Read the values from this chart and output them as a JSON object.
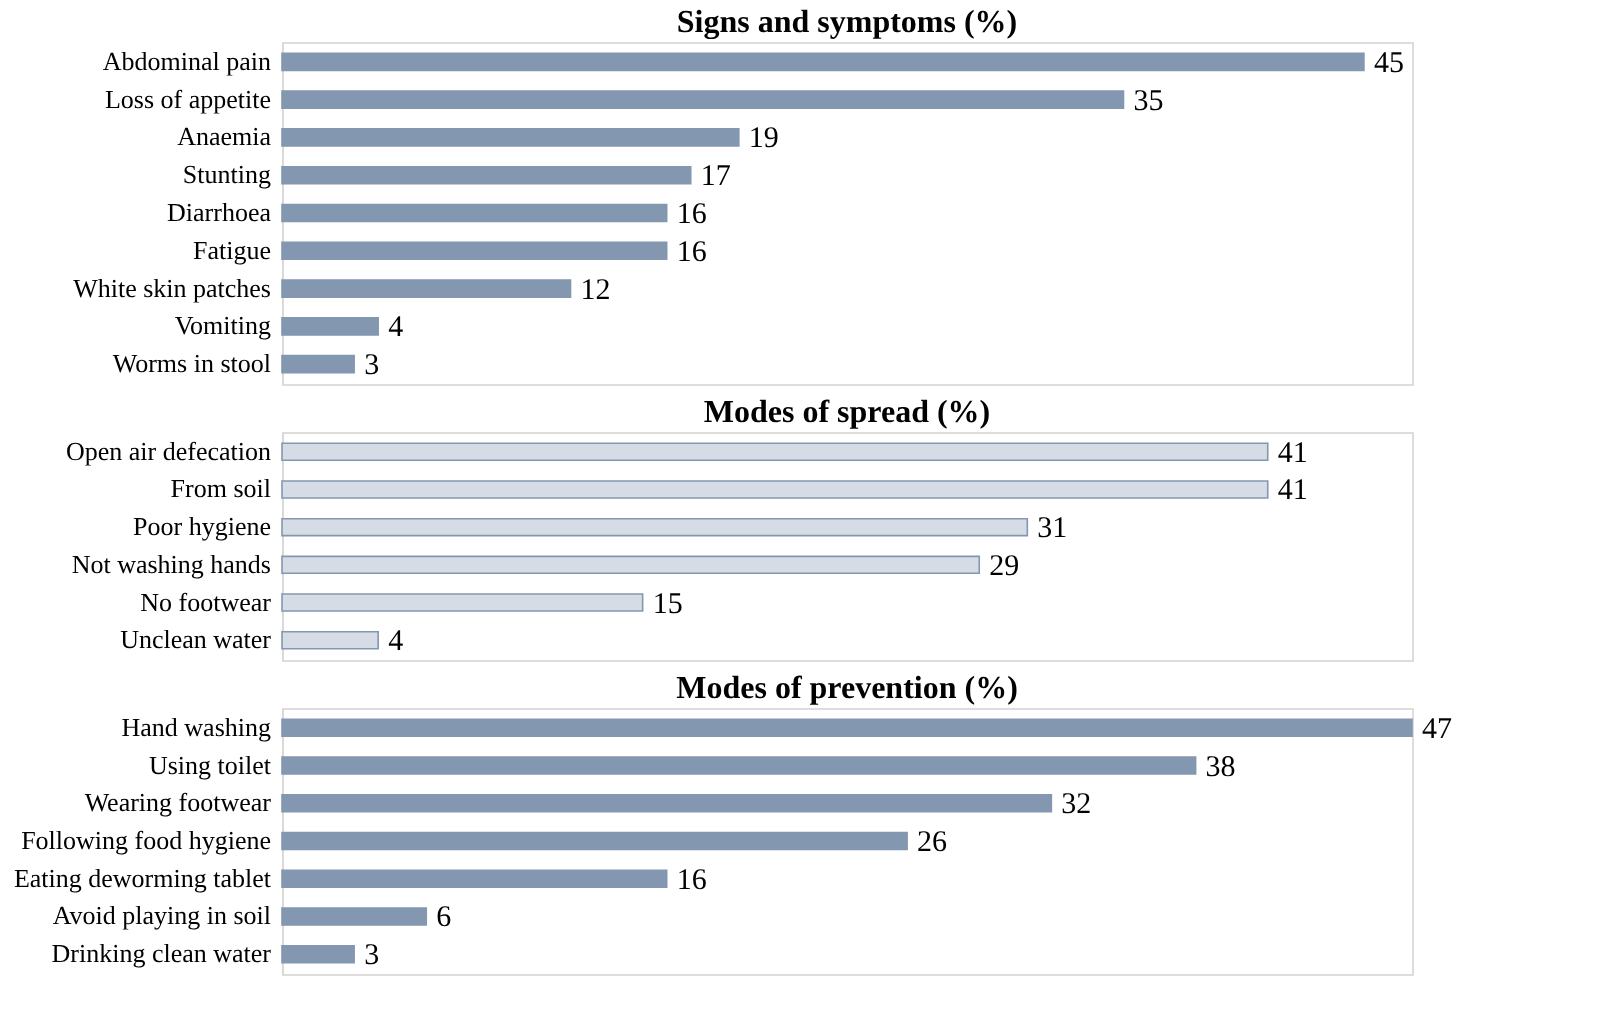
{
  "chart_data": [
    {
      "type": "bar",
      "orientation": "horizontal",
      "title": "Signs and symptoms (%)",
      "categories": [
        "Abdominal pain",
        "Loss of appetite",
        "Anaemia",
        "Stunting",
        "Diarrhoea",
        "Fatigue",
        "White skin patches",
        "Vomiting",
        "Worms in stool"
      ],
      "values": [
        45,
        35,
        19,
        17,
        16,
        16,
        12,
        4,
        3
      ],
      "color": "#8497b0",
      "data_labels": true
    },
    {
      "type": "bar",
      "orientation": "horizontal",
      "title": "Modes of spread (%)",
      "categories": [
        "Open air defecation",
        "From soil",
        "Poor hygiene",
        "Not washing hands",
        "No footwear",
        "Unclean water"
      ],
      "values": [
        41,
        41,
        31,
        29,
        15,
        4
      ],
      "color": "#d6dce5",
      "data_labels": true
    },
    {
      "type": "bar",
      "orientation": "horizontal",
      "title": "Modes of prevention (%)",
      "categories": [
        "Hand washing",
        "Using toilet",
        "Wearing footwear",
        "Following food hygiene",
        "Eating deworming tablet",
        "Avoid playing in soil",
        "Drinking clean water"
      ],
      "values": [
        47,
        38,
        32,
        26,
        16,
        6,
        3
      ],
      "color": "#8497b0",
      "data_labels": true
    }
  ]
}
